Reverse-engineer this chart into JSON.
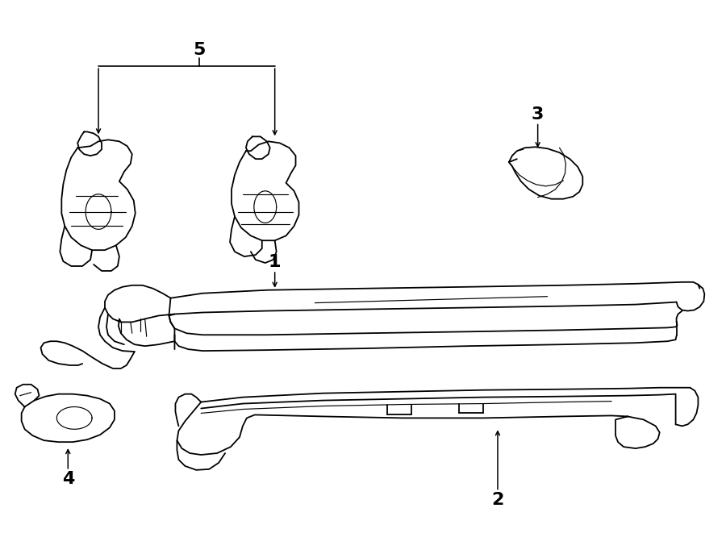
{
  "background_color": "#ffffff",
  "line_color": "#000000",
  "fig_width": 9.0,
  "fig_height": 6.61,
  "dpi": 100,
  "label_fontsize": 16
}
